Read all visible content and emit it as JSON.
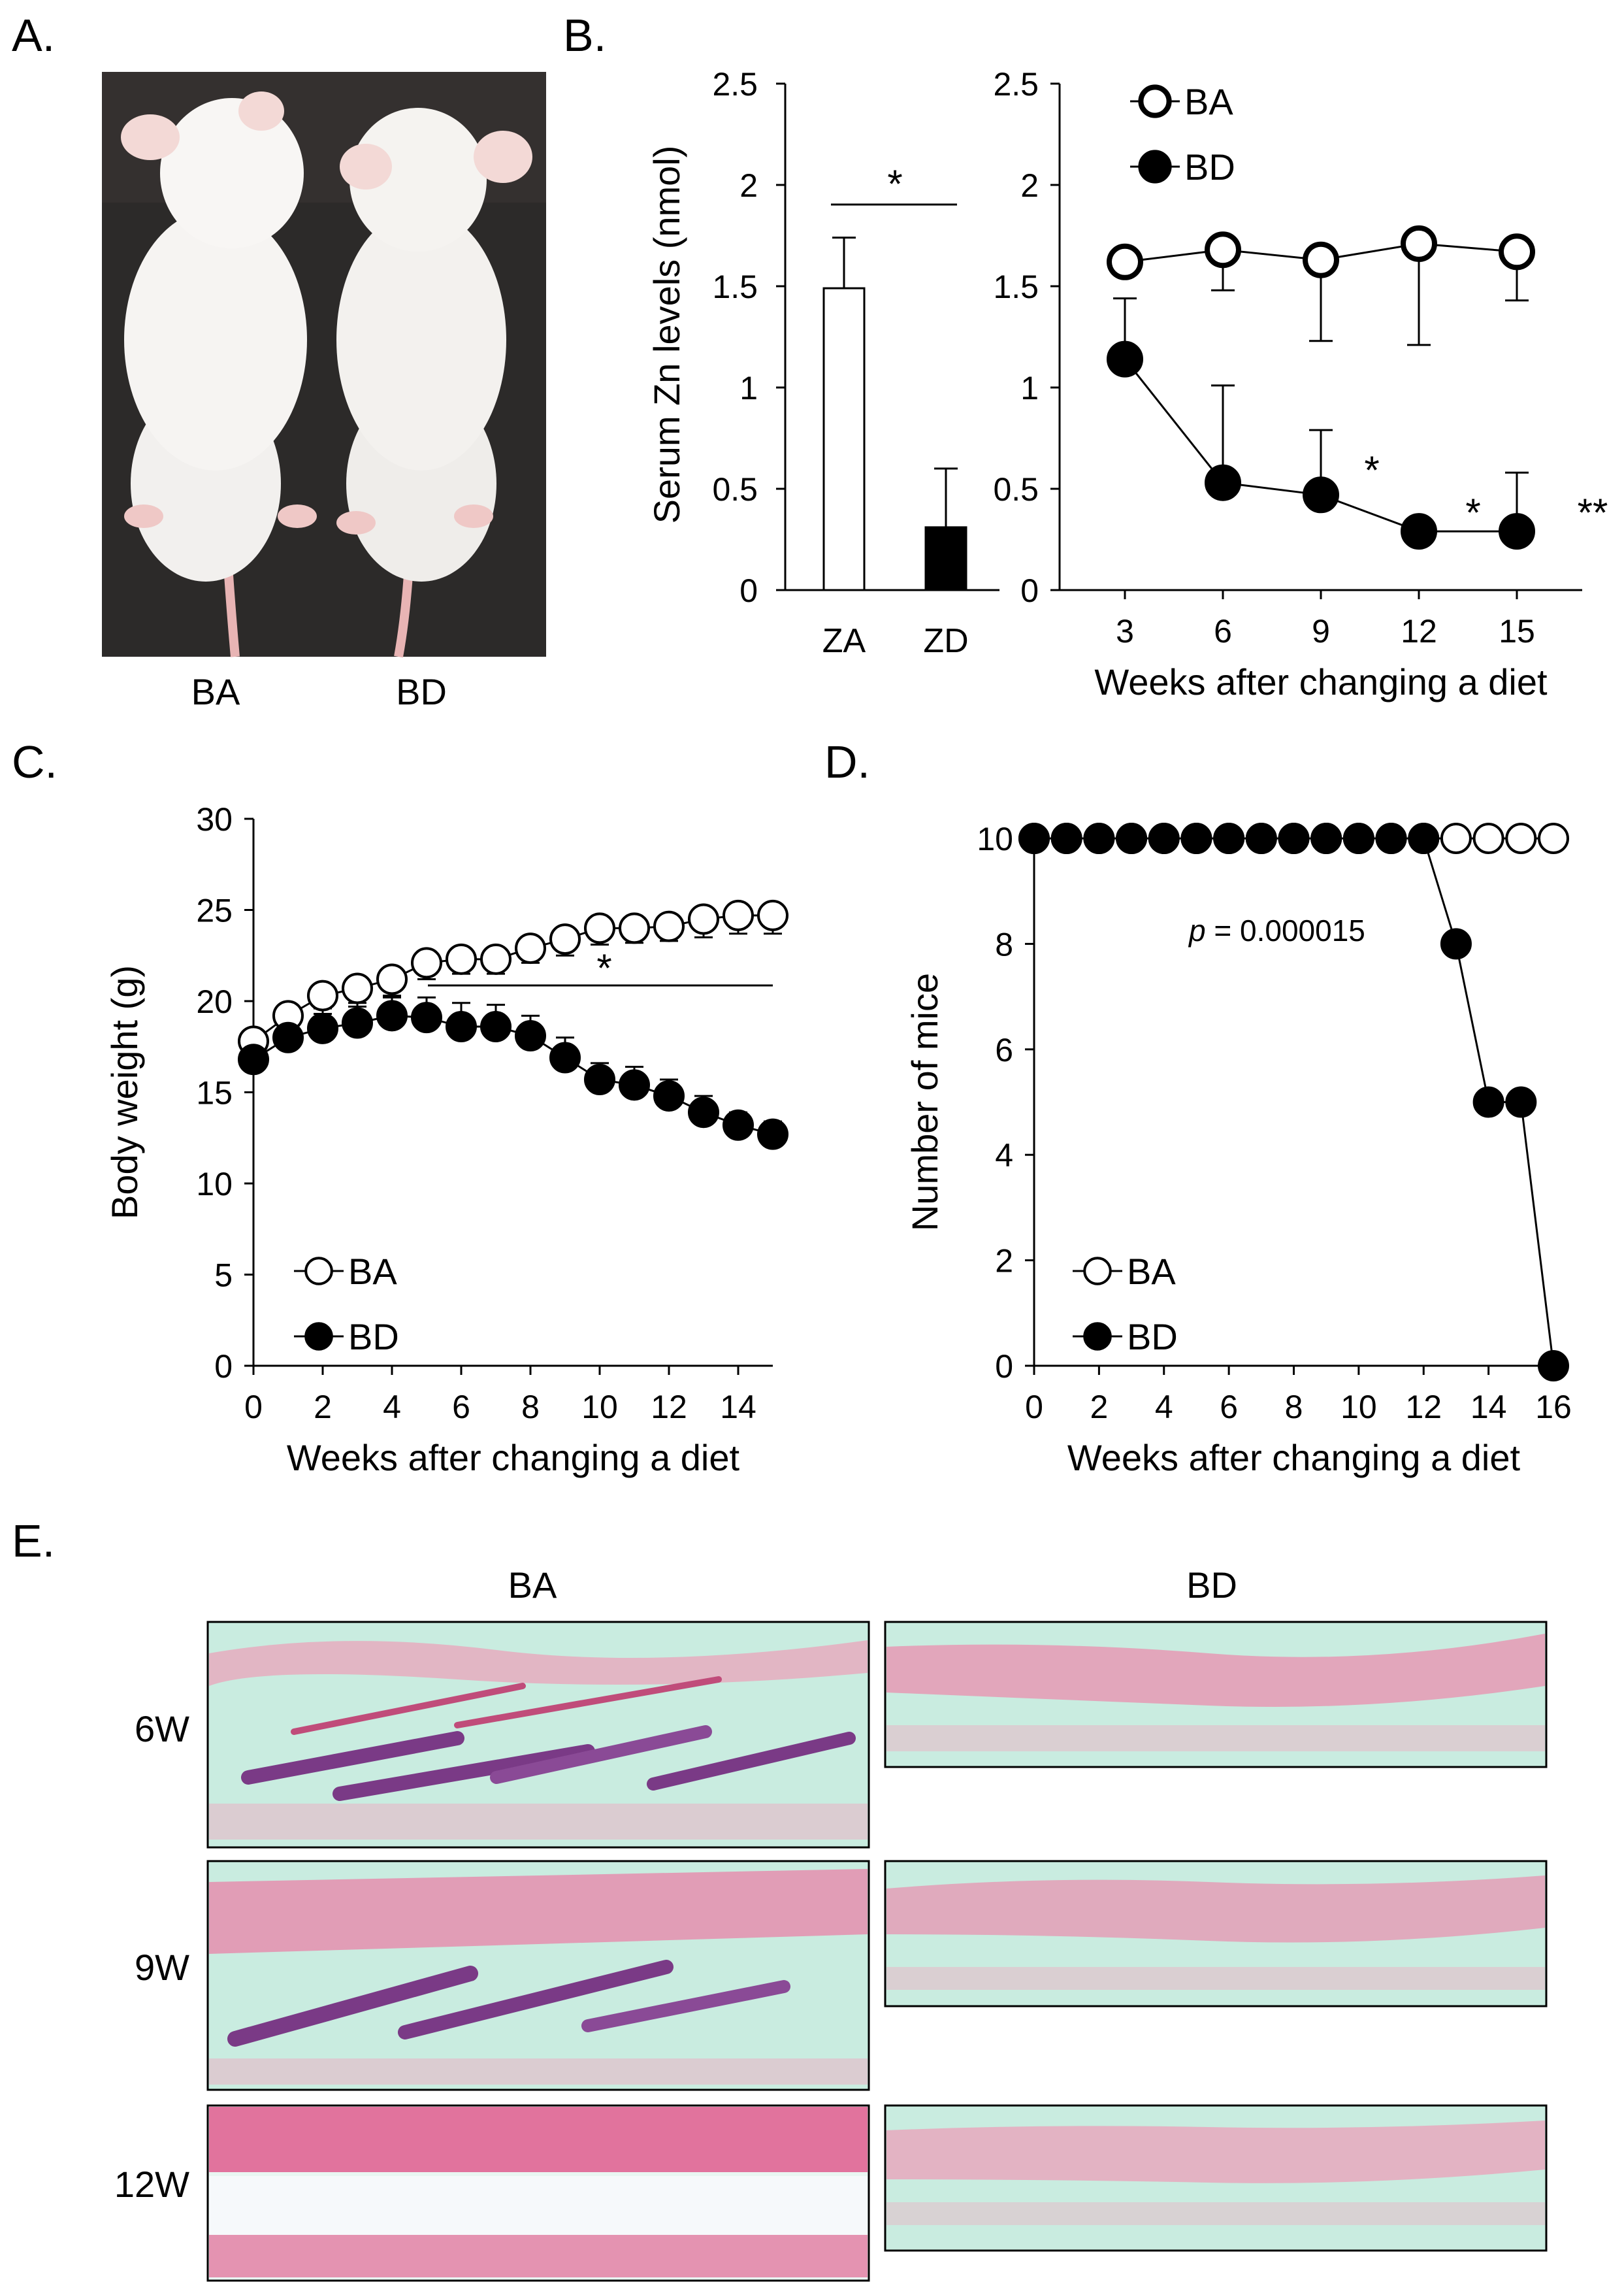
{
  "panels": {
    "a": {
      "letter": "A.",
      "labels": [
        "BA",
        "BD"
      ]
    },
    "b": {
      "letter": "B."
    },
    "c": {
      "letter": "C."
    },
    "d": {
      "letter": "D."
    },
    "e": {
      "letter": "E.",
      "col_labels": [
        "BA",
        "BD"
      ],
      "row_labels": [
        "6W",
        "9W",
        "12W"
      ]
    }
  },
  "chart_data": [
    {
      "id": "b-bar",
      "type": "bar",
      "categories": [
        "ZA",
        "ZD"
      ],
      "values": [
        1.49,
        0.31
      ],
      "errors": [
        0.25,
        0.29
      ],
      "fills": [
        "#ffffff",
        "#000000"
      ],
      "ylabel": "Serum Zn levels (nmol)",
      "ylim": [
        0,
        2.5
      ],
      "yticks": [
        "0",
        "0.5",
        "1",
        "1.5",
        "2",
        "2.5"
      ],
      "annotation": "*"
    },
    {
      "id": "b-line",
      "type": "line",
      "x": [
        3,
        6,
        9,
        12,
        15
      ],
      "xticks": [
        "3",
        "6",
        "9",
        "12",
        "15"
      ],
      "xlim": [
        1,
        17
      ],
      "xlabel": "Weeks after changing a diet",
      "ylim": [
        0,
        2.5
      ],
      "yticks": [
        "0",
        "0.5",
        "1",
        "1.5",
        "2",
        "2.5"
      ],
      "legend": "top-left",
      "series": [
        {
          "name": "BA",
          "values": [
            1.62,
            1.68,
            1.63,
            1.71,
            1.67
          ],
          "errors": [
            0,
            0.2,
            0.4,
            0.5,
            0.24
          ],
          "marker": "open"
        },
        {
          "name": "BD",
          "values": [
            1.14,
            0.53,
            0.47,
            0.29,
            0.29
          ],
          "errors": [
            0.3,
            0.48,
            0.32,
            0,
            0.29
          ],
          "marker": "filled"
        }
      ],
      "annotations": [
        "*",
        "*",
        "**"
      ]
    },
    {
      "id": "c",
      "type": "line",
      "x": [
        0,
        1,
        2,
        3,
        4,
        5,
        6,
        7,
        8,
        9,
        10,
        11,
        12,
        13,
        14,
        15
      ],
      "xticks": [
        "0",
        "2",
        "4",
        "6",
        "8",
        "10",
        "12",
        "14"
      ],
      "xlim": [
        0,
        15
      ],
      "xlabel": "Weeks after changing a diet",
      "ylabel": "Body weight (g)",
      "ylim": [
        0,
        30
      ],
      "yticks": [
        "0",
        "5",
        "10",
        "15",
        "20",
        "25",
        "30"
      ],
      "legend": "bottom-left",
      "series": [
        {
          "name": "BA",
          "values": [
            17.8,
            19.2,
            20.3,
            20.7,
            21.2,
            22.1,
            22.3,
            22.3,
            22.9,
            23.4,
            24.0,
            24.0,
            24.1,
            24.5,
            24.7,
            24.7
          ],
          "errors": [
            1.0,
            1.0,
            1.0,
            1.0,
            1.0,
            0.9,
            0.8,
            0.8,
            0.8,
            0.9,
            0.9,
            0.8,
            0.8,
            1.0,
            1.0,
            1.0
          ],
          "marker": "open"
        },
        {
          "name": "BD",
          "values": [
            16.8,
            18.0,
            18.5,
            18.8,
            19.2,
            19.1,
            18.6,
            18.6,
            18.1,
            16.9,
            15.7,
            15.4,
            14.8,
            13.9,
            13.2,
            12.7
          ],
          "errors": [
            0.9,
            1.0,
            1.1,
            1.1,
            1.1,
            1.1,
            1.3,
            1.2,
            1.1,
            1.1,
            0.9,
            1.0,
            0.9,
            0.9,
            0.7,
            0.7
          ],
          "marker": "filled"
        }
      ],
      "annotation": "*"
    },
    {
      "id": "d",
      "type": "line",
      "x": [
        0,
        1,
        2,
        3,
        4,
        5,
        6,
        7,
        8,
        9,
        10,
        11,
        12,
        13,
        14,
        15,
        16
      ],
      "xticks": [
        "0",
        "2",
        "4",
        "6",
        "8",
        "10",
        "12",
        "14",
        "16"
      ],
      "xlim": [
        0,
        16
      ],
      "xlabel": "Weeks after changing a diet",
      "ylabel": "Number of mice",
      "ylim": [
        0,
        10
      ],
      "yticks": [
        "0",
        "2",
        "4",
        "6",
        "8",
        "10"
      ],
      "legend": "bottom-left",
      "series": [
        {
          "name": "BA",
          "values": [
            10,
            10,
            10,
            10,
            10,
            10,
            10,
            10,
            10,
            10,
            10,
            10,
            10,
            10,
            10,
            10,
            10
          ],
          "marker": "open"
        },
        {
          "name": "BD",
          "values": [
            10,
            10,
            10,
            10,
            10,
            10,
            10,
            10,
            10,
            10,
            10,
            10,
            10,
            8,
            5,
            5,
            0
          ],
          "marker": "filled"
        }
      ],
      "annotation": {
        "prefix": "p",
        "text": " = 0.000015"
      }
    }
  ]
}
